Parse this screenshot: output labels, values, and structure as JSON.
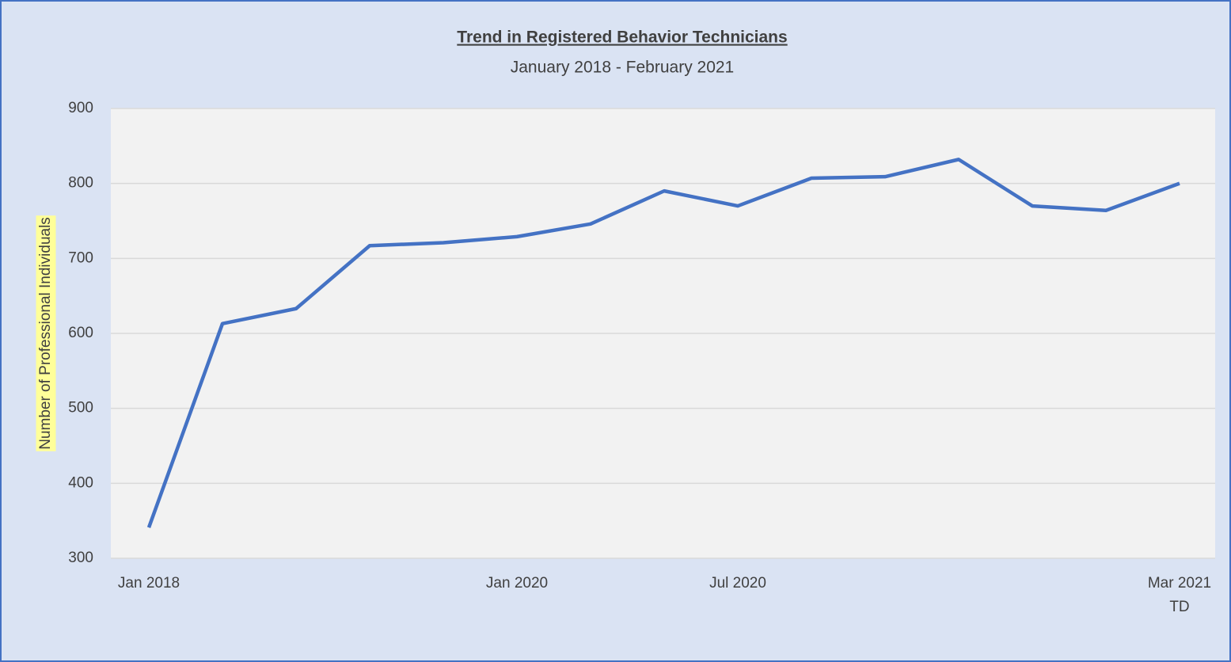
{
  "chart_data": {
    "type": "line",
    "title": "Trend in Registered Behavior Technicians",
    "subtitle": "January 2018 - February 2021",
    "y_label": "Number of Professional Individuals",
    "categories": [
      "Jan 2018",
      null,
      null,
      null,
      null,
      "Jan 2020",
      null,
      null,
      "Jul 2020",
      null,
      null,
      null,
      null,
      null,
      "Mar 2021 TD"
    ],
    "series": [
      {
        "name": "Registered Behavior Technicians",
        "color": "#4472c4",
        "values": [
          341,
          613,
          633,
          717,
          721,
          729,
          746,
          790,
          770,
          807,
          809,
          832,
          770,
          764,
          800
        ]
      }
    ],
    "ylim": [
      300,
      900
    ],
    "yticks": [
      300,
      400,
      500,
      600,
      700,
      800,
      900
    ],
    "grid": true
  }
}
